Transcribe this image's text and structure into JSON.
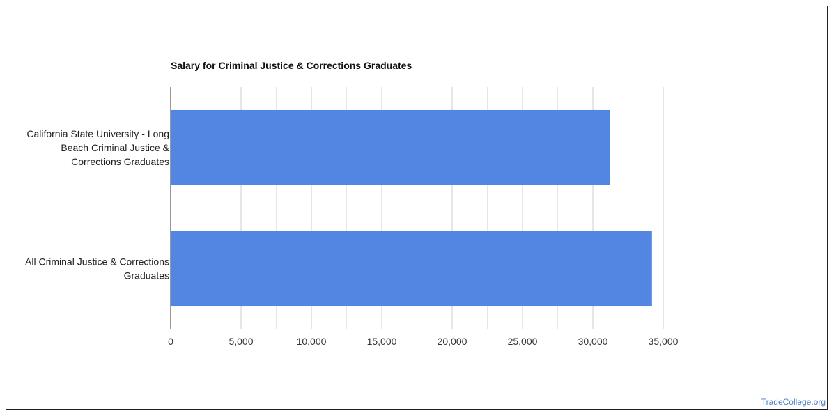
{
  "source_link": "TradeCollege.org",
  "colors": {
    "bar": "#5385e3",
    "grid_major": "#cccccc",
    "grid_minor": "#e6e6e6",
    "axis": "#333333"
  },
  "chart_data": {
    "type": "bar",
    "orientation": "horizontal",
    "title": "Salary for Criminal Justice & Corrections Graduates",
    "xlabel": "",
    "ylabel": "",
    "categories": [
      [
        "California State University - Long",
        "Beach Criminal Justice &",
        "Corrections Graduates"
      ],
      [
        "All Criminal Justice & Corrections",
        "Graduates"
      ]
    ],
    "values": [
      31200,
      34200
    ],
    "xlim": [
      0,
      35000
    ],
    "xticks": [
      0,
      5000,
      10000,
      15000,
      20000,
      25000,
      30000,
      35000
    ],
    "xtick_labels": [
      "0",
      "5,000",
      "10,000",
      "15,000",
      "20,000",
      "25,000",
      "30,000",
      "35,000"
    ],
    "grid": true,
    "legend": "none"
  }
}
